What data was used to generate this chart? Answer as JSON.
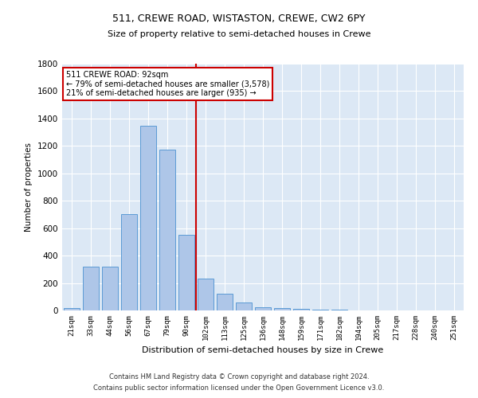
{
  "title1": "511, CREWE ROAD, WISTASTON, CREWE, CW2 6PY",
  "title2": "Size of property relative to semi-detached houses in Crewe",
  "xlabel": "Distribution of semi-detached houses by size in Crewe",
  "ylabel": "Number of properties",
  "categories": [
    "21sqm",
    "33sqm",
    "44sqm",
    "56sqm",
    "67sqm",
    "79sqm",
    "90sqm",
    "102sqm",
    "113sqm",
    "125sqm",
    "136sqm",
    "148sqm",
    "159sqm",
    "171sqm",
    "182sqm",
    "194sqm",
    "205sqm",
    "217sqm",
    "228sqm",
    "240sqm",
    "251sqm"
  ],
  "values": [
    20,
    320,
    320,
    700,
    1350,
    1175,
    550,
    235,
    120,
    60,
    25,
    15,
    10,
    5,
    3,
    2,
    1,
    1,
    1,
    0,
    0
  ],
  "bar_color": "#aec6e8",
  "bar_edge_color": "#5b9bd5",
  "vline_color": "#cc0000",
  "annotation_text": "511 CREWE ROAD: 92sqm\n← 79% of semi-detached houses are smaller (3,578)\n21% of semi-detached houses are larger (935) →",
  "annotation_box_color": "#ffffff",
  "annotation_box_edge": "#cc0000",
  "ylim": [
    0,
    1800
  ],
  "yticks": [
    0,
    200,
    400,
    600,
    800,
    1000,
    1200,
    1400,
    1600,
    1800
  ],
  "bg_color": "#dce8f5",
  "grid_color": "#ffffff",
  "footer1": "Contains HM Land Registry data © Crown copyright and database right 2024.",
  "footer2": "Contains public sector information licensed under the Open Government Licence v3.0."
}
